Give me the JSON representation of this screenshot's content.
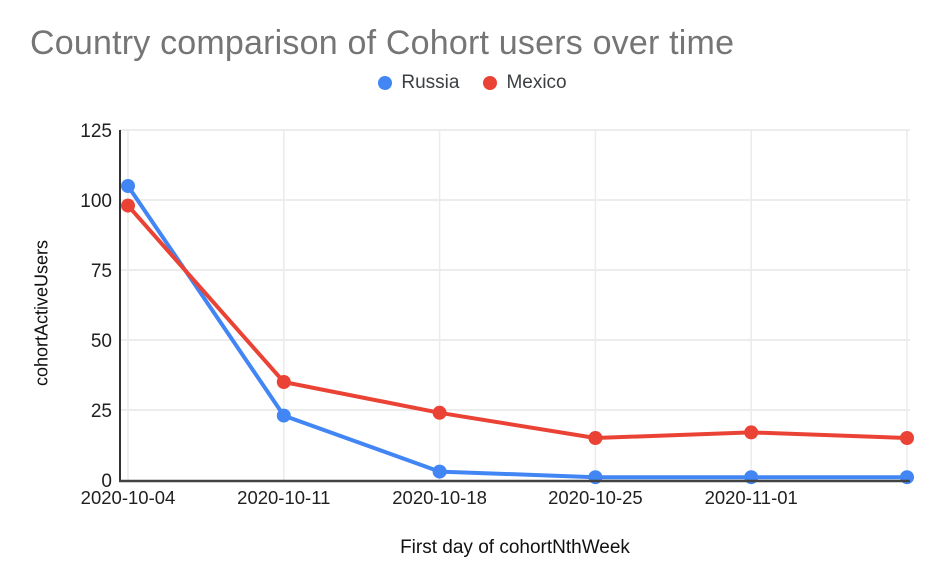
{
  "chart_data": {
    "type": "line",
    "title": "Country comparison of Cohort users over time",
    "xlabel": "First day of cohortNthWeek",
    "ylabel": "cohortActiveUsers",
    "categories": [
      "2020-10-04",
      "2020-10-11",
      "2020-10-18",
      "2020-10-25",
      "2020-11-01",
      ""
    ],
    "series": [
      {
        "name": "Russia",
        "color": "#4285f4",
        "values": [
          105,
          23,
          3,
          1,
          1,
          1
        ]
      },
      {
        "name": "Mexico",
        "color": "#ea4335",
        "values": [
          98,
          35,
          24,
          15,
          17,
          15
        ]
      }
    ],
    "ylim": [
      0,
      125
    ],
    "yticks": [
      0,
      25,
      50,
      75,
      100,
      125
    ],
    "grid": true,
    "legend_position": "top",
    "title_color": "#757575",
    "axis_text_color": "#1f1f1f",
    "grid_color": "#e6e6e6",
    "axis_line_color": "#424242",
    "background": "#ffffff"
  }
}
